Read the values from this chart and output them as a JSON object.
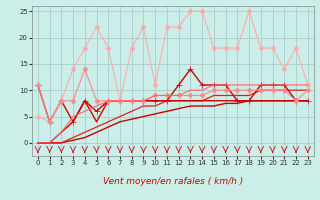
{
  "background_color": "#cceee8",
  "grid_color": "#aacccc",
  "xlabel": "Vent moyen/en rafales ( km/h )",
  "xlim": [
    -0.5,
    23.5
  ],
  "ylim": [
    -2.5,
    26
  ],
  "yticks": [
    0,
    5,
    10,
    15,
    20,
    25
  ],
  "xticks": [
    0,
    1,
    2,
    3,
    4,
    5,
    6,
    7,
    8,
    9,
    10,
    11,
    12,
    13,
    14,
    15,
    16,
    17,
    18,
    19,
    20,
    21,
    22,
    23
  ],
  "lines": [
    {
      "x": [
        0,
        1,
        2,
        3,
        4,
        5,
        6,
        7,
        8,
        9,
        10,
        11,
        12,
        13,
        14,
        15,
        16,
        17,
        18,
        19,
        20,
        21,
        22,
        23
      ],
      "y": [
        0,
        0,
        0,
        0.5,
        1,
        2,
        3,
        4,
        4.5,
        5,
        5.5,
        6,
        6.5,
        7,
        7,
        7,
        7.5,
        7.5,
        8,
        8,
        8,
        8,
        8,
        8
      ],
      "color": "#cc0000",
      "linewidth": 1.0,
      "marker": null,
      "linestyle": "-"
    },
    {
      "x": [
        0,
        1,
        2,
        3,
        4,
        5,
        6,
        7,
        8,
        9,
        10,
        11,
        12,
        13,
        14,
        15,
        16,
        17,
        18,
        19,
        20,
        21,
        22,
        23
      ],
      "y": [
        0,
        0,
        0,
        1,
        2,
        3,
        4,
        5,
        6,
        7,
        7,
        8,
        8,
        8,
        8,
        9,
        9,
        9,
        9,
        10,
        10,
        10,
        10,
        10
      ],
      "color": "#dd2222",
      "linewidth": 0.9,
      "marker": null,
      "linestyle": "-"
    },
    {
      "x": [
        0,
        1,
        2,
        3,
        4,
        5,
        6,
        7,
        8,
        9,
        10,
        11,
        12,
        13,
        14,
        15,
        16,
        17,
        18,
        19,
        20,
        21,
        22,
        23
      ],
      "y": [
        11,
        4,
        8,
        4,
        8,
        6,
        8,
        8,
        8,
        8,
        8,
        8,
        11,
        14,
        11,
        11,
        11,
        8,
        8,
        11,
        11,
        11,
        8,
        8
      ],
      "color": "#cc0000",
      "linewidth": 1.0,
      "marker": "+",
      "markersize": 4,
      "linestyle": "-"
    },
    {
      "x": [
        0,
        1,
        2,
        3,
        4,
        5,
        6,
        7,
        8,
        9,
        10,
        11,
        12,
        13,
        14,
        15,
        16,
        17,
        18,
        19,
        20,
        21,
        22,
        23
      ],
      "y": [
        0,
        0,
        2,
        4,
        8,
        4,
        8,
        8,
        8,
        8,
        8,
        8,
        8,
        8,
        8,
        8,
        8,
        8,
        8,
        8,
        8,
        8,
        8,
        8
      ],
      "color": "#cc0000",
      "linewidth": 1.0,
      "marker": null,
      "linestyle": "-"
    },
    {
      "x": [
        0,
        1,
        2,
        3,
        4,
        5,
        6,
        7,
        8,
        9,
        10,
        11,
        12,
        13,
        14,
        15,
        16,
        17,
        18,
        19,
        20,
        21,
        22,
        23
      ],
      "y": [
        5,
        4,
        8,
        14,
        18,
        22,
        18,
        8,
        18,
        22,
        11,
        22,
        22,
        25,
        25,
        18,
        18,
        18,
        25,
        18,
        18,
        14,
        18,
        11
      ],
      "color": "#ffaaaa",
      "linewidth": 0.8,
      "marker": "D",
      "markersize": 2.5,
      "linestyle": "-"
    },
    {
      "x": [
        0,
        1,
        2,
        3,
        4,
        5,
        6,
        7,
        8,
        9,
        10,
        11,
        12,
        13,
        14,
        15,
        16,
        17,
        18,
        19,
        20,
        21,
        22,
        23
      ],
      "y": [
        11,
        4,
        8,
        8,
        14,
        8,
        8,
        8,
        8,
        8,
        9,
        9,
        9,
        9,
        9,
        10,
        10,
        10,
        10,
        10,
        10,
        10,
        8,
        10
      ],
      "color": "#ff8888",
      "linewidth": 0.8,
      "marker": "D",
      "markersize": 2.5,
      "linestyle": "-"
    },
    {
      "x": [
        0,
        1,
        2,
        3,
        4,
        5,
        6,
        7,
        8,
        9,
        10,
        11,
        12,
        13,
        14,
        15,
        16,
        17,
        18,
        19,
        20,
        21,
        22,
        23
      ],
      "y": [
        0,
        0,
        2,
        5,
        6,
        7,
        8,
        8,
        8,
        8,
        9,
        9,
        9,
        10,
        10,
        11,
        11,
        11,
        11,
        11,
        11,
        11,
        11,
        11
      ],
      "color": "#ff6666",
      "linewidth": 0.8,
      "marker": null,
      "linestyle": "-"
    }
  ],
  "arrow_color": "#cc0000",
  "xlabel_color": "#cc0000",
  "xlabel_fontsize": 6.5,
  "tick_fontsize": 5,
  "grid_linewidth": 0.6
}
